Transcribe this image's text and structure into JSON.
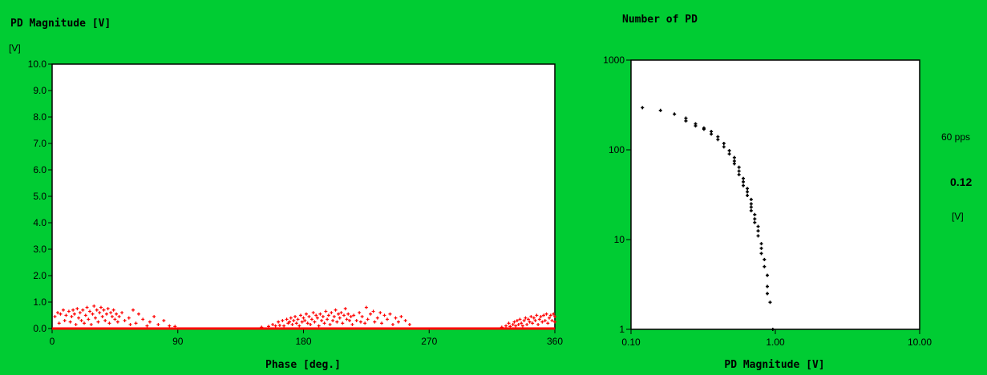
{
  "chart_data": [
    {
      "type": "scatter",
      "title": "PD Magnitude [V]",
      "yunit": "[V]",
      "xlabel": "Phase [deg.]",
      "xlim": [
        0,
        360
      ],
      "ylim": [
        0,
        10
      ],
      "xticks": [
        "0",
        "90",
        "180",
        "270",
        "360"
      ],
      "yticks": [
        "0.0",
        "1.0",
        "2.0",
        "3.0",
        "4.0",
        "5.0",
        "6.0",
        "7.0",
        "8.0",
        "9.0",
        "10.0"
      ],
      "xtick_values": [
        0,
        90,
        180,
        270,
        360
      ],
      "ytick_values": [
        0,
        1,
        2,
        3,
        4,
        5,
        6,
        7,
        8,
        9,
        10
      ],
      "marker_color": "#ff0000",
      "grid": false,
      "series": [
        {
          "points": [
            [
              2,
              0.45
            ],
            [
              4,
              0.6
            ],
            [
              5,
              0.2
            ],
            [
              6,
              0.55
            ],
            [
              8,
              0.7
            ],
            [
              9,
              0.3
            ],
            [
              10,
              0.5
            ],
            [
              12,
              0.65
            ],
            [
              13,
              0.25
            ],
            [
              14,
              0.45
            ],
            [
              15,
              0.7
            ],
            [
              16,
              0.55
            ],
            [
              17,
              0.15
            ],
            [
              18,
              0.75
            ],
            [
              19,
              0.4
            ],
            [
              20,
              0.6
            ],
            [
              21,
              0.3
            ],
            [
              22,
              0.7
            ],
            [
              23,
              0.2
            ],
            [
              24,
              0.5
            ],
            [
              25,
              0.8
            ],
            [
              26,
              0.35
            ],
            [
              27,
              0.65
            ],
            [
              28,
              0.15
            ],
            [
              29,
              0.55
            ],
            [
              30,
              0.85
            ],
            [
              31,
              0.4
            ],
            [
              32,
              0.7
            ],
            [
              33,
              0.25
            ],
            [
              34,
              0.6
            ],
            [
              35,
              0.8
            ],
            [
              36,
              0.45
            ],
            [
              37,
              0.7
            ],
            [
              38,
              0.3
            ],
            [
              39,
              0.55
            ],
            [
              40,
              0.75
            ],
            [
              41,
              0.2
            ],
            [
              42,
              0.6
            ],
            [
              43,
              0.45
            ],
            [
              44,
              0.7
            ],
            [
              45,
              0.35
            ],
            [
              46,
              0.55
            ],
            [
              47,
              0.25
            ],
            [
              48,
              0.45
            ],
            [
              50,
              0.6
            ],
            [
              52,
              0.3
            ],
            [
              55,
              0.4
            ],
            [
              56,
              0.15
            ],
            [
              58,
              0.7
            ],
            [
              60,
              0.2
            ],
            [
              62,
              0.55
            ],
            [
              65,
              0.35
            ],
            [
              68,
              0.1
            ],
            [
              70,
              0.25
            ],
            [
              73,
              0.45
            ],
            [
              76,
              0.15
            ],
            [
              80,
              0.3
            ],
            [
              84,
              0.1
            ],
            [
              88,
              0.08
            ],
            [
              150,
              0.05
            ],
            [
              155,
              0.08
            ],
            [
              158,
              0.15
            ],
            [
              160,
              0.1
            ],
            [
              162,
              0.25
            ],
            [
              163,
              0.12
            ],
            [
              165,
              0.3
            ],
            [
              166,
              0.1
            ],
            [
              168,
              0.35
            ],
            [
              169,
              0.2
            ],
            [
              170,
              0.25
            ],
            [
              171,
              0.4
            ],
            [
              172,
              0.15
            ],
            [
              173,
              0.3
            ],
            [
              174,
              0.45
            ],
            [
              175,
              0.2
            ],
            [
              176,
              0.35
            ],
            [
              177,
              0.1
            ],
            [
              178,
              0.5
            ],
            [
              179,
              0.25
            ],
            [
              180,
              0.4
            ],
            [
              181,
              0.3
            ],
            [
              182,
              0.55
            ],
            [
              183,
              0.2
            ],
            [
              184,
              0.45
            ],
            [
              185,
              0.15
            ],
            [
              186,
              0.35
            ],
            [
              187,
              0.6
            ],
            [
              188,
              0.25
            ],
            [
              189,
              0.5
            ],
            [
              190,
              0.4
            ],
            [
              191,
              0.1
            ],
            [
              192,
              0.55
            ],
            [
              193,
              0.3
            ],
            [
              194,
              0.45
            ],
            [
              195,
              0.2
            ],
            [
              196,
              0.65
            ],
            [
              197,
              0.35
            ],
            [
              198,
              0.5
            ],
            [
              199,
              0.15
            ],
            [
              200,
              0.6
            ],
            [
              201,
              0.3
            ],
            [
              202,
              0.45
            ],
            [
              203,
              0.7
            ],
            [
              204,
              0.25
            ],
            [
              205,
              0.55
            ],
            [
              206,
              0.4
            ],
            [
              207,
              0.6
            ],
            [
              208,
              0.2
            ],
            [
              209,
              0.5
            ],
            [
              210,
              0.75
            ],
            [
              211,
              0.35
            ],
            [
              212,
              0.55
            ],
            [
              213,
              0.3
            ],
            [
              214,
              0.45
            ],
            [
              215,
              0.15
            ],
            [
              216,
              0.5
            ],
            [
              218,
              0.3
            ],
            [
              220,
              0.6
            ],
            [
              221,
              0.25
            ],
            [
              222,
              0.45
            ],
            [
              224,
              0.2
            ],
            [
              225,
              0.8
            ],
            [
              226,
              0.35
            ],
            [
              228,
              0.55
            ],
            [
              230,
              0.65
            ],
            [
              231,
              0.25
            ],
            [
              233,
              0.4
            ],
            [
              235,
              0.6
            ],
            [
              236,
              0.2
            ],
            [
              238,
              0.5
            ],
            [
              240,
              0.35
            ],
            [
              242,
              0.55
            ],
            [
              244,
              0.15
            ],
            [
              246,
              0.4
            ],
            [
              248,
              0.25
            ],
            [
              250,
              0.45
            ],
            [
              253,
              0.3
            ],
            [
              256,
              0.15
            ],
            [
              322,
              0.05
            ],
            [
              325,
              0.1
            ],
            [
              327,
              0.2
            ],
            [
              328,
              0.08
            ],
            [
              330,
              0.15
            ],
            [
              331,
              0.25
            ],
            [
              332,
              0.1
            ],
            [
              333,
              0.3
            ],
            [
              334,
              0.15
            ],
            [
              335,
              0.35
            ],
            [
              336,
              0.2
            ],
            [
              337,
              0.1
            ],
            [
              338,
              0.3
            ],
            [
              339,
              0.4
            ],
            [
              340,
              0.15
            ],
            [
              341,
              0.35
            ],
            [
              342,
              0.25
            ],
            [
              343,
              0.45
            ],
            [
              344,
              0.2
            ],
            [
              345,
              0.4
            ],
            [
              346,
              0.3
            ],
            [
              347,
              0.5
            ],
            [
              348,
              0.15
            ],
            [
              349,
              0.35
            ],
            [
              350,
              0.45
            ],
            [
              351,
              0.25
            ],
            [
              352,
              0.5
            ],
            [
              353,
              0.3
            ],
            [
              354,
              0.55
            ],
            [
              355,
              0.2
            ],
            [
              356,
              0.4
            ],
            [
              357,
              0.5
            ],
            [
              358,
              0.3
            ],
            [
              359,
              0.55
            ],
            [
              360,
              0.45
            ],
            [
              361,
              0.25
            ]
          ]
        }
      ]
    },
    {
      "type": "scatter",
      "title": "Number of PD",
      "xlabel": "PD Magnitude [V]",
      "xscale": "log",
      "yscale": "log",
      "xlim": [
        0.1,
        10
      ],
      "ylim": [
        1,
        1000
      ],
      "xticks": [
        "0.10",
        "1.00",
        "10.00"
      ],
      "yticks": [
        "1",
        "10",
        "100",
        "1000"
      ],
      "xtick_values": [
        0.1,
        1,
        10
      ],
      "ytick_values": [
        1,
        10,
        100,
        1000
      ],
      "marker_color": "#000000",
      "grid": false,
      "series": [
        {
          "points": [
            [
              0.12,
              295
            ],
            [
              0.16,
              275
            ],
            [
              0.2,
              250
            ],
            [
              0.24,
              225
            ],
            [
              0.24,
              210
            ],
            [
              0.28,
              195
            ],
            [
              0.28,
              185
            ],
            [
              0.32,
              175
            ],
            [
              0.32,
              170
            ],
            [
              0.36,
              160
            ],
            [
              0.36,
              150
            ],
            [
              0.4,
              140
            ],
            [
              0.4,
              130
            ],
            [
              0.44,
              118
            ],
            [
              0.44,
              108
            ],
            [
              0.48,
              98
            ],
            [
              0.48,
              90
            ],
            [
              0.52,
              82
            ],
            [
              0.52,
              75
            ],
            [
              0.52,
              70
            ],
            [
              0.56,
              64
            ],
            [
              0.56,
              58
            ],
            [
              0.56,
              53
            ],
            [
              0.6,
              48
            ],
            [
              0.6,
              44
            ],
            [
              0.6,
              40
            ],
            [
              0.64,
              37
            ],
            [
              0.64,
              34
            ],
            [
              0.64,
              31
            ],
            [
              0.68,
              28
            ],
            [
              0.68,
              25
            ],
            [
              0.68,
              23
            ],
            [
              0.68,
              21
            ],
            [
              0.72,
              19
            ],
            [
              0.72,
              17
            ],
            [
              0.72,
              15.5
            ],
            [
              0.76,
              14
            ],
            [
              0.76,
              12.5
            ],
            [
              0.76,
              11
            ],
            [
              0.8,
              9
            ],
            [
              0.8,
              8
            ],
            [
              0.8,
              7
            ],
            [
              0.84,
              6
            ],
            [
              0.84,
              5
            ],
            [
              0.88,
              4
            ],
            [
              0.88,
              3
            ],
            [
              0.88,
              2.5
            ],
            [
              0.92,
              2
            ],
            [
              0.96,
              1
            ]
          ]
        }
      ]
    }
  ],
  "side": {
    "rate": "60 pps",
    "value": "0.12",
    "unit": "[V]"
  }
}
